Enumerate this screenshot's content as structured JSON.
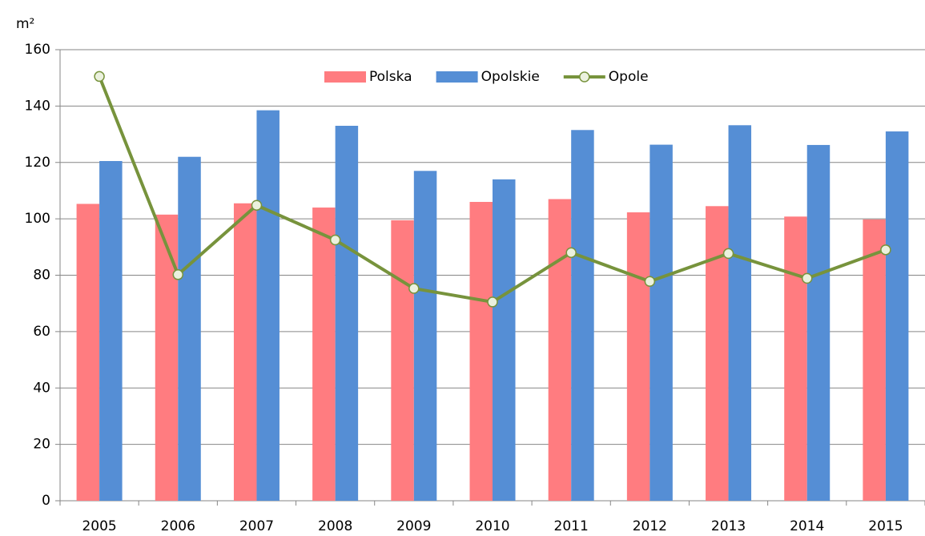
{
  "chart_data": {
    "type": "bar_line",
    "y_label": "m²",
    "categories": [
      "2005",
      "2006",
      "2007",
      "2008",
      "2009",
      "2010",
      "2011",
      "2012",
      "2013",
      "2014",
      "2015"
    ],
    "series": [
      {
        "name": "Polska",
        "type": "bar",
        "color": "#ff7c80",
        "values": [
          105.3,
          101.5,
          105.5,
          104,
          99.5,
          106,
          107,
          102.3,
          104.5,
          100.8,
          99.8
        ]
      },
      {
        "name": "Opolskie",
        "type": "bar",
        "color": "#558ed5",
        "values": [
          120.5,
          122,
          138.5,
          133,
          117,
          114,
          131.5,
          126.3,
          133.2,
          126.2,
          131
        ]
      },
      {
        "name": "Opole",
        "type": "line",
        "color": "#77933c",
        "marker_fill": "#ebf1de",
        "values": [
          150.5,
          80.2,
          104.8,
          92.5,
          75.3,
          70.5,
          88,
          77.8,
          87.7,
          78.9,
          89
        ]
      }
    ],
    "ylim": [
      0,
      160
    ],
    "yticks": [
      0,
      20,
      40,
      60,
      80,
      100,
      120,
      140,
      160
    ],
    "grid": true,
    "legend": "top"
  }
}
